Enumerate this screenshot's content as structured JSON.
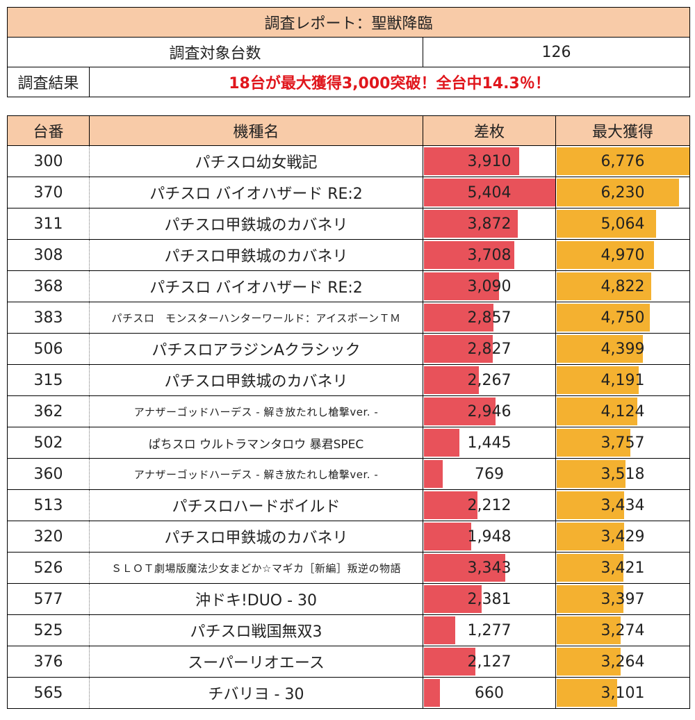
{
  "header": {
    "title": "調査レポート：聖獣降臨",
    "count_label": "調査対象台数",
    "count_value": "126",
    "result_label": "調査結果",
    "result_text": "18台が最大獲得3,000突破！全台中14.3％！"
  },
  "columns": [
    "台番",
    "機種名",
    "差枚",
    "最大獲得"
  ],
  "colors": {
    "header_bg": "#f8cba8",
    "diff_bar": "#e8525a",
    "max_bar": "#f4b130",
    "result_text": "#e0161c"
  },
  "scale": {
    "diff_max": 5404,
    "max_max": 6776
  },
  "rows": [
    {
      "num": "300",
      "name": "パチスロ幼女戦記",
      "diff": "3,910",
      "max": "6,776"
    },
    {
      "num": "370",
      "name": "パチスロ バイオハザード RE:2",
      "diff": "5,404",
      "max": "6,230"
    },
    {
      "num": "311",
      "name": "パチスロ甲鉄城のカバネリ",
      "diff": "3,872",
      "max": "5,064"
    },
    {
      "num": "308",
      "name": "パチスロ甲鉄城のカバネリ",
      "diff": "3,708",
      "max": "4,970"
    },
    {
      "num": "368",
      "name": "パチスロ バイオハザード RE:2",
      "diff": "3,090",
      "max": "4,822"
    },
    {
      "num": "383",
      "name": "パチスロ　モンスターハンターワールド：アイスボーンＴＭ",
      "diff": "2,857",
      "max": "4,750"
    },
    {
      "num": "506",
      "name": "パチスロアラジンAクラシック",
      "diff": "2,827",
      "max": "4,399"
    },
    {
      "num": "315",
      "name": "パチスロ甲鉄城のカバネリ",
      "diff": "2,267",
      "max": "4,191"
    },
    {
      "num": "362",
      "name": "アナザーゴッドハーデス - 解き放たれし槍撃ver. -",
      "diff": "2,946",
      "max": "4,124"
    },
    {
      "num": "502",
      "name": "ぱちスロ ウルトラマンタロウ 暴君SPEC",
      "diff": "1,445",
      "max": "3,757"
    },
    {
      "num": "360",
      "name": "アナザーゴッドハーデス - 解き放たれし槍撃ver. -",
      "diff": "769",
      "max": "3,518"
    },
    {
      "num": "513",
      "name": "パチスロハードボイルド",
      "diff": "2,212",
      "max": "3,434"
    },
    {
      "num": "320",
      "name": "パチスロ甲鉄城のカバネリ",
      "diff": "1,948",
      "max": "3,429"
    },
    {
      "num": "526",
      "name": "ＳＬＯＴ劇場版魔法少女まどか☆マギカ［新編］叛逆の物語",
      "diff": "3,343",
      "max": "3,421"
    },
    {
      "num": "577",
      "name": "沖ドキ!DUO - 30",
      "diff": "2,381",
      "max": "3,397"
    },
    {
      "num": "525",
      "name": "パチスロ戦国無双3",
      "diff": "1,277",
      "max": "3,274"
    },
    {
      "num": "376",
      "name": "スーパーリオエース",
      "diff": "2,127",
      "max": "3,264"
    },
    {
      "num": "565",
      "name": "チバリヨ - 30",
      "diff": "660",
      "max": "3,101"
    }
  ]
}
